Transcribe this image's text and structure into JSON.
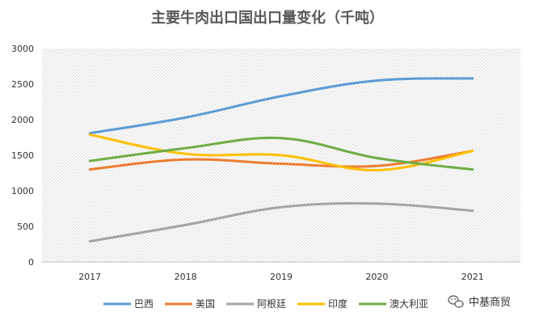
{
  "chart_data": {
    "type": "line",
    "title": "主要牛肉出口国出口量变化（千吨）",
    "categories": [
      "2017",
      "2018",
      "2019",
      "2020",
      "2021"
    ],
    "ylim": [
      0,
      3000
    ],
    "yticks": [
      0,
      500,
      1000,
      1500,
      2000,
      2500,
      3000
    ],
    "grid": false,
    "legend_position": "bottom",
    "series": [
      {
        "name": "巴西",
        "color": "#5B9BD5",
        "values": [
          1810,
          2030,
          2330,
          2550,
          2580
        ]
      },
      {
        "name": "美国",
        "color": "#ED7D31",
        "values": [
          1300,
          1440,
          1380,
          1350,
          1560
        ]
      },
      {
        "name": "阿根廷",
        "color": "#A5A5A5",
        "values": [
          290,
          520,
          770,
          820,
          720
        ]
      },
      {
        "name": "印度",
        "color": "#FFC000",
        "values": [
          1790,
          1520,
          1500,
          1290,
          1560
        ]
      },
      {
        "name": "澳大利亚",
        "color": "#70AD47",
        "values": [
          1420,
          1600,
          1740,
          1460,
          1300
        ]
      }
    ]
  },
  "watermark": {
    "text": "中基商贸",
    "icon": "wechat-icon"
  }
}
